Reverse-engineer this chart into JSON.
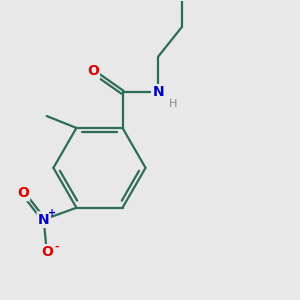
{
  "bg_color": "#e8e8e8",
  "bond_color": "#2d6b5a",
  "bond_width": 1.6,
  "atom_colors": {
    "O": "#dd0000",
    "N_amide": "#0000cc",
    "N_nitro": "#0000cc",
    "H": "#888888",
    "C": "#2d6b5a"
  },
  "font_size_atoms": 10,
  "font_size_h": 8,
  "font_size_charge": 7
}
